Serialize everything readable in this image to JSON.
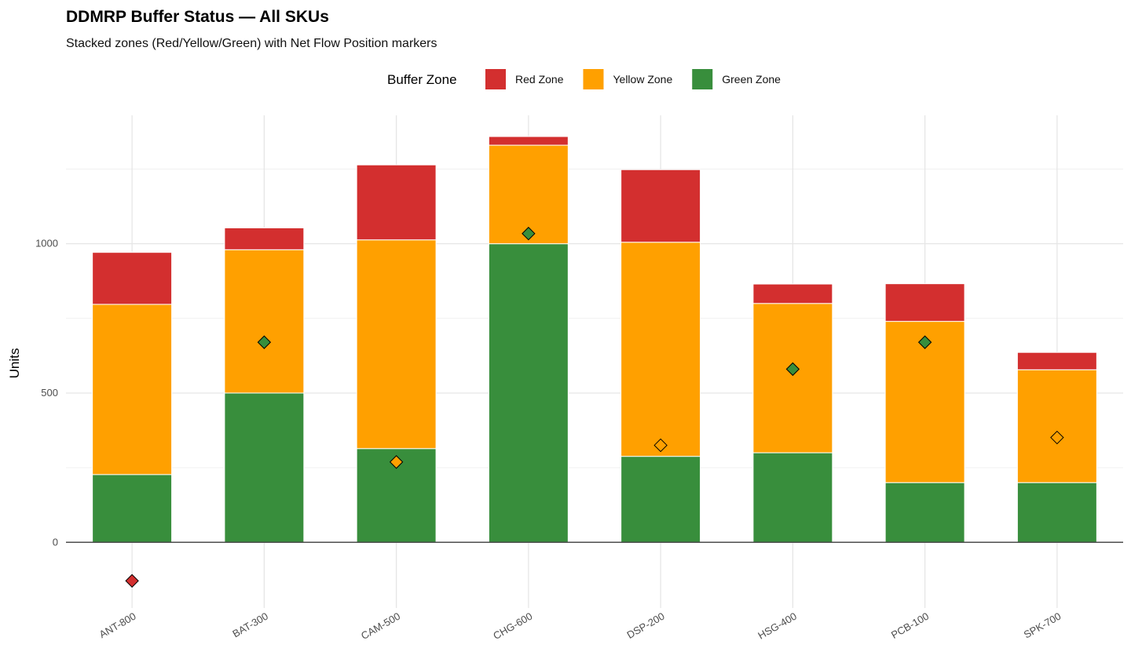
{
  "chart_data": {
    "type": "bar",
    "stacked": true,
    "title": "DDMRP Buffer Status — All SKUs",
    "subtitle": "Stacked zones (Red/Yellow/Green) with Net Flow Position markers",
    "xlabel": "",
    "ylabel": "Units",
    "ylim": [
      -220,
      1430
    ],
    "y_ticks": [
      0,
      500,
      1000
    ],
    "grid": true,
    "legend": {
      "title": "Buffer Zone",
      "placement": "top"
    },
    "categories": [
      "ANT-800",
      "BAT-300",
      "CAM-500",
      "CHG-600",
      "DSP-200",
      "HSG-400",
      "PCB-100",
      "SPK-700"
    ],
    "series": [
      {
        "name": "Green Zone",
        "color": "#388E3C",
        "values": [
          227,
          500,
          314,
          1000,
          288,
          300,
          200,
          200
        ]
      },
      {
        "name": "Yellow Zone",
        "color": "#FFA000",
        "values": [
          570,
          480,
          699,
          330,
          717,
          500,
          540,
          378
        ]
      },
      {
        "name": "Red Zone",
        "color": "#D32F2F",
        "values": [
          174,
          73,
          251,
          29,
          243,
          65,
          126,
          58
        ]
      }
    ],
    "legend_order": [
      "Red Zone",
      "Yellow Zone",
      "Green Zone"
    ],
    "net_flow_position": {
      "marker": "diamond",
      "values": [
        -129,
        670,
        269,
        1034,
        325,
        580,
        670,
        351
      ],
      "colors": [
        "#D32F2F",
        "#388E3C",
        "#FFA000",
        "#388E3C",
        "#FFA000",
        "#388E3C",
        "#388E3C",
        "#FFA000"
      ]
    }
  }
}
